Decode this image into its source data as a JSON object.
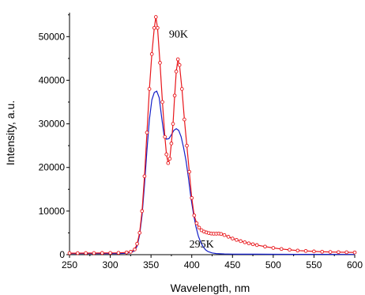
{
  "chart_data": {
    "type": "line",
    "xlabel": "Wavelength, nm",
    "ylabel": "Intensity, a.u.",
    "xlim": [
      250,
      600
    ],
    "ylim": [
      0,
      55500
    ],
    "xticks": [
      250,
      300,
      350,
      400,
      450,
      500,
      550,
      600
    ],
    "xtick_labels": [
      "250",
      "300",
      "350",
      "400",
      "450",
      "500",
      "550",
      "600"
    ],
    "yticks": [
      0,
      10000,
      20000,
      30000,
      40000,
      50000
    ],
    "ytick_labels": [
      "0",
      "10000",
      "20000",
      "30000",
      "40000",
      "50000"
    ],
    "grid": false,
    "legend": "none",
    "annotations": [
      {
        "text": "90K",
        "x": 372,
        "y": 49800
      },
      {
        "text": "295K",
        "x": 397,
        "y": 1600
      }
    ],
    "series": [
      {
        "color": "#e8161b",
        "marker": "open-circle",
        "x": [
          250,
          260,
          270,
          280,
          290,
          300,
          310,
          320,
          325,
          330,
          333,
          336,
          339,
          342,
          345,
          348,
          351,
          354,
          356,
          358,
          361,
          364,
          367,
          369,
          371,
          373,
          375,
          377,
          379,
          381,
          383,
          385,
          388,
          391,
          394,
          397,
          400,
          403,
          406,
          409,
          412,
          415,
          418,
          421,
          424,
          427,
          430,
          433,
          436,
          440,
          445,
          450,
          455,
          460,
          465,
          470,
          475,
          480,
          490,
          500,
          510,
          520,
          530,
          540,
          550,
          560,
          570,
          580,
          590,
          600
        ],
        "y": [
          350,
          350,
          360,
          370,
          380,
          400,
          420,
          500,
          650,
          1200,
          2500,
          5000,
          10000,
          18000,
          28000,
          38000,
          46000,
          52000,
          54500,
          52000,
          44000,
          35000,
          27000,
          23000,
          21000,
          22000,
          25500,
          30000,
          36500,
          42000,
          44800,
          43500,
          38000,
          31000,
          25000,
          19000,
          13000,
          9000,
          7200,
          6200,
          5600,
          5300,
          5100,
          4950,
          4850,
          4800,
          4800,
          4850,
          4750,
          4500,
          4100,
          3700,
          3400,
          3100,
          2850,
          2600,
          2400,
          2200,
          1850,
          1550,
          1300,
          1100,
          950,
          850,
          750,
          680,
          620,
          580,
          540,
          500
        ]
      },
      {
        "color": "#1520c8",
        "marker": "none",
        "x": [
          250,
          270,
          290,
          310,
          320,
          325,
          330,
          333,
          336,
          339,
          342,
          345,
          348,
          351,
          354,
          357,
          360,
          363,
          366,
          369,
          372,
          375,
          378,
          381,
          384,
          387,
          390,
          393,
          396,
          399,
          402,
          405,
          408,
          411,
          414,
          417,
          420,
          425,
          430,
          440,
          450,
          460,
          480,
          500,
          530,
          560,
          600
        ],
        "y": [
          250,
          250,
          250,
          260,
          300,
          450,
          900,
          2000,
          4500,
          9000,
          16000,
          24000,
          31000,
          35500,
          37200,
          37500,
          36000,
          31500,
          27500,
          26500,
          26600,
          27500,
          28500,
          28900,
          28500,
          27000,
          24500,
          21500,
          17500,
          13000,
          9500,
          6500,
          4300,
          2800,
          1800,
          1100,
          700,
          400,
          250,
          170,
          130,
          110,
          100,
          90,
          80,
          70,
          60
        ]
      }
    ]
  }
}
